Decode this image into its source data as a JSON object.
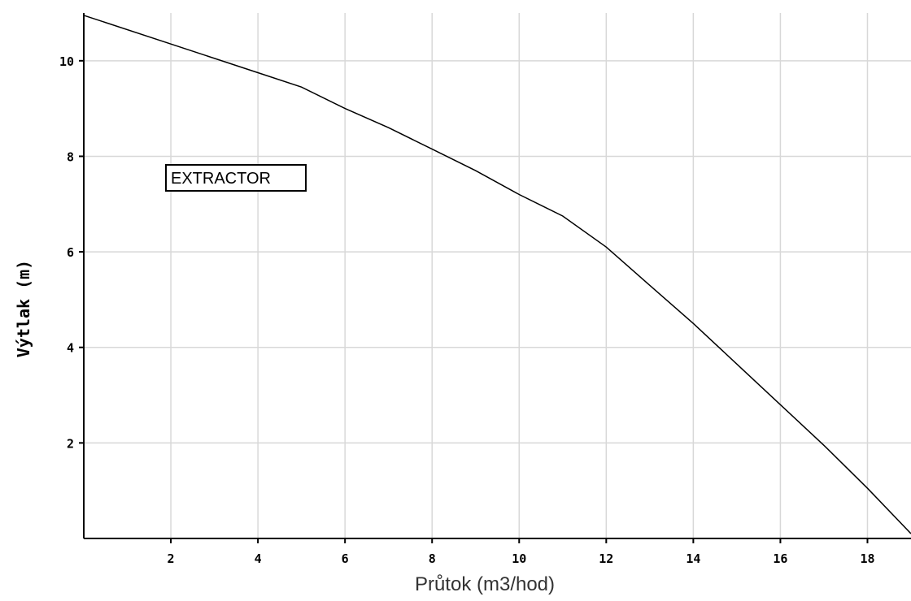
{
  "chart_data": {
    "type": "line",
    "xlabel": "Průtok (m3/hod)",
    "ylabel": "Výtlak (m)",
    "xlim": [
      0,
      19
    ],
    "ylim": [
      0,
      11
    ],
    "x_ticks": [
      2,
      4,
      6,
      8,
      10,
      12,
      14,
      16,
      18
    ],
    "y_ticks": [
      2,
      4,
      6,
      8,
      10
    ],
    "grid": true,
    "annotation": "EXTRACTOR",
    "series": [
      {
        "x": [
          0,
          2,
          4,
          5,
          6,
          7,
          8,
          9,
          10,
          11,
          12,
          13,
          14,
          15,
          16,
          17,
          18,
          19
        ],
        "y": [
          10.95,
          10.35,
          9.75,
          9.45,
          9.0,
          8.6,
          8.15,
          7.7,
          7.2,
          6.75,
          6.1,
          5.3,
          4.5,
          3.65,
          2.8,
          1.95,
          1.05,
          0.1
        ]
      }
    ],
    "colors": {
      "line": "#000000",
      "grid": "#d8d8d8",
      "axis": "#000000"
    }
  }
}
